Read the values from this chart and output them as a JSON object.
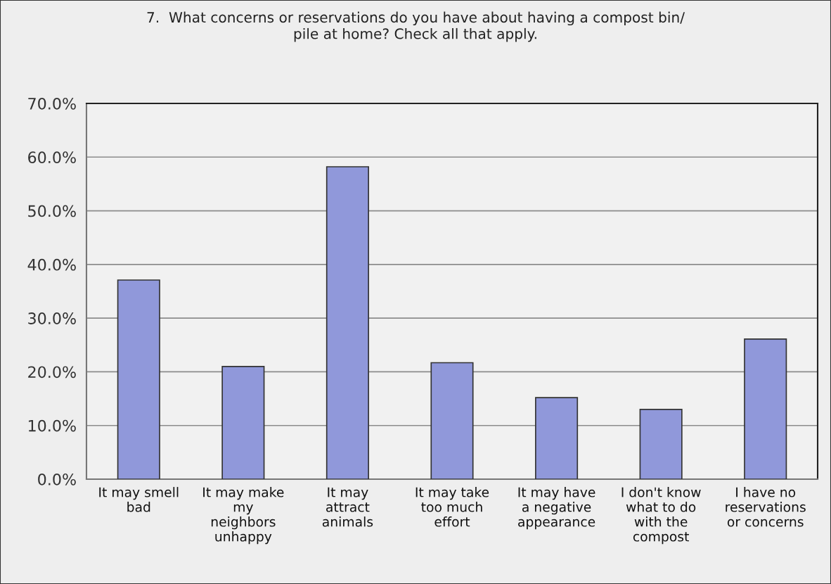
{
  "chart_data": {
    "type": "bar",
    "title": "7.  What concerns or reservations do you have about having a compost bin/\npile at home? Check all that apply.",
    "categories": [
      "It may smell\nbad",
      "It may make\nmy\nneighbors\nunhappy",
      "It may\nattract\nanimals",
      "It may take\ntoo much\neffort",
      "It may have\na negative\nappearance",
      "I don't know\nwhat to do\nwith the\ncompost",
      "I have no\nreservations\nor concerns"
    ],
    "values": [
      37.1,
      21.0,
      58.2,
      21.7,
      15.2,
      13.0,
      26.1
    ],
    "color": "#9098da",
    "ylim": [
      0,
      70
    ],
    "yticks": [
      {
        "value": 0,
        "label": "0.0%"
      },
      {
        "value": 10,
        "label": "10.0%"
      },
      {
        "value": 20,
        "label": "20.0%"
      },
      {
        "value": 30,
        "label": "30.0%"
      },
      {
        "value": 40,
        "label": "40.0%"
      },
      {
        "value": 50,
        "label": "50.0%"
      },
      {
        "value": 60,
        "label": "60.0%"
      },
      {
        "value": 70,
        "label": "70.0%"
      }
    ],
    "grid": "y",
    "legend": false
  }
}
